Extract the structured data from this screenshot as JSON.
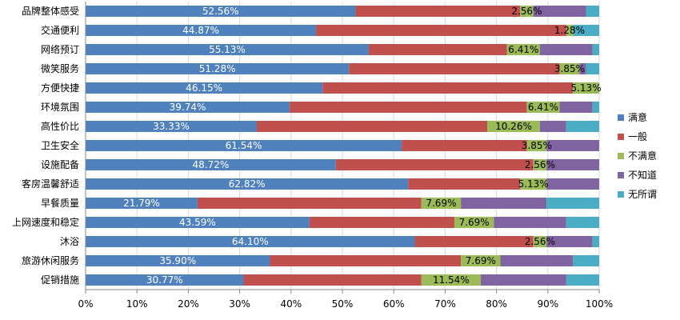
{
  "chart_data": {
    "type": "bar",
    "orientation": "horizontal",
    "stacked": "percent",
    "categories": [
      "品牌整体感受",
      "交通便利",
      "网络预订",
      "微笑服务",
      "方便快捷",
      "环境氛围",
      "高性价比",
      "卫生安全",
      "设施配备",
      "客房温馨舒适",
      "早餐质量",
      "上网速度和稳定",
      "沐浴",
      "旅游休闲服务",
      "促销措施"
    ],
    "series": [
      {
        "name": "满意",
        "color": "#4F81BD",
        "values": [
          52.56,
          44.87,
          55.13,
          51.28,
          46.15,
          39.74,
          33.33,
          61.54,
          48.72,
          62.82,
          21.79,
          43.59,
          64.1,
          35.9,
          30.77
        ]
      },
      {
        "name": "一般",
        "color": "#C0504D",
        "values": [
          32.05,
          48.72,
          26.92,
          41.03,
          48.72,
          46.15,
          44.87,
          24.36,
          38.46,
          21.79,
          43.59,
          28.21,
          23.08,
          37.18,
          34.62
        ]
      },
      {
        "name": "不满意",
        "color": "#9BBB59",
        "values": [
          2.56,
          1.28,
          6.41,
          3.85,
          5.13,
          6.41,
          10.26,
          3.85,
          2.56,
          5.13,
          7.69,
          7.69,
          2.56,
          7.69,
          11.54
        ]
      },
      {
        "name": "不知道",
        "color": "#8064A2",
        "values": [
          10.26,
          0.0,
          10.26,
          1.28,
          0.0,
          6.41,
          5.13,
          10.25,
          10.26,
          10.26,
          16.67,
          14.1,
          8.97,
          14.1,
          16.67
        ]
      },
      {
        "name": "无所谓",
        "color": "#4BACC6",
        "values": [
          2.57,
          5.13,
          1.28,
          2.56,
          0.0,
          1.29,
          6.41,
          0.0,
          0.0,
          0.0,
          10.26,
          6.41,
          1.29,
          5.13,
          6.4
        ]
      }
    ],
    "labeled_series": [
      0,
      2
    ],
    "data_labels": {
      "满意": [
        "52.56%",
        "44.87%",
        "55.13%",
        "51.28%",
        "46.15%",
        "39.74%",
        "33.33%",
        "61.54%",
        "48.72%",
        "62.82%",
        "21.79%",
        "43.59%",
        "64.10%",
        "35.90%",
        "30.77%"
      ],
      "不满意": [
        "2.56%",
        "1.28%",
        "6.41%",
        "3.85%",
        "5.13%",
        "6.41%",
        "10.26%",
        "3.85%",
        "2.56%",
        "5.13%",
        "7.69%",
        "7.69%",
        "2.56%",
        "7.69%",
        "11.54%"
      ]
    },
    "xlim": [
      0,
      100
    ],
    "xticks": [
      "0%",
      "10%",
      "20%",
      "30%",
      "40%",
      "50%",
      "60%",
      "70%",
      "80%",
      "90%",
      "100%"
    ],
    "legend_position": "right",
    "grid": "vertical"
  }
}
